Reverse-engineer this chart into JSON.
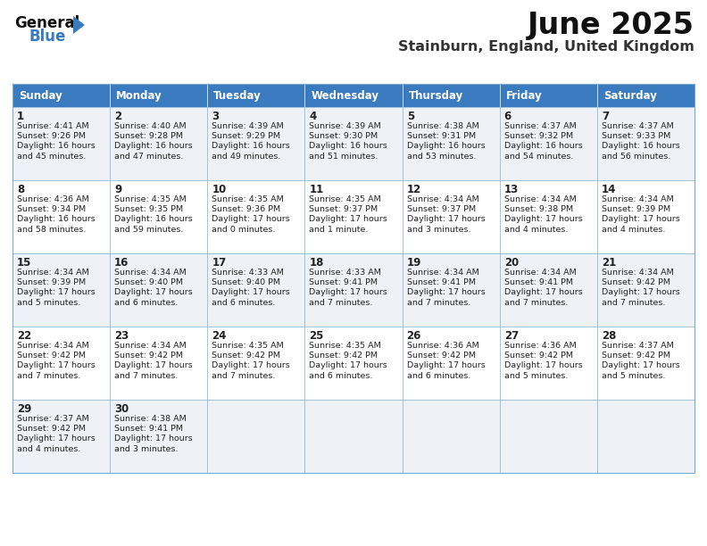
{
  "title": "June 2025",
  "subtitle": "Stainburn, England, United Kingdom",
  "header_color": "#3a7abf",
  "header_text_color": "#ffffff",
  "background_color": "#ffffff",
  "cell_bg_odd": "#eef2f7",
  "cell_bg_even": "#ffffff",
  "border_color": "#7aaacf",
  "text_color": "#222222",
  "days_of_week": [
    "Sunday",
    "Monday",
    "Tuesday",
    "Wednesday",
    "Thursday",
    "Friday",
    "Saturday"
  ],
  "calendar_data": [
    [
      {
        "day": "1",
        "sunrise": "4:41 AM",
        "sunset": "9:26 PM",
        "daylight": "16 hours\nand 45 minutes."
      },
      {
        "day": "2",
        "sunrise": "4:40 AM",
        "sunset": "9:28 PM",
        "daylight": "16 hours\nand 47 minutes."
      },
      {
        "day": "3",
        "sunrise": "4:39 AM",
        "sunset": "9:29 PM",
        "daylight": "16 hours\nand 49 minutes."
      },
      {
        "day": "4",
        "sunrise": "4:39 AM",
        "sunset": "9:30 PM",
        "daylight": "16 hours\nand 51 minutes."
      },
      {
        "day": "5",
        "sunrise": "4:38 AM",
        "sunset": "9:31 PM",
        "daylight": "16 hours\nand 53 minutes."
      },
      {
        "day": "6",
        "sunrise": "4:37 AM",
        "sunset": "9:32 PM",
        "daylight": "16 hours\nand 54 minutes."
      },
      {
        "day": "7",
        "sunrise": "4:37 AM",
        "sunset": "9:33 PM",
        "daylight": "16 hours\nand 56 minutes."
      }
    ],
    [
      {
        "day": "8",
        "sunrise": "4:36 AM",
        "sunset": "9:34 PM",
        "daylight": "16 hours\nand 58 minutes."
      },
      {
        "day": "9",
        "sunrise": "4:35 AM",
        "sunset": "9:35 PM",
        "daylight": "16 hours\nand 59 minutes."
      },
      {
        "day": "10",
        "sunrise": "4:35 AM",
        "sunset": "9:36 PM",
        "daylight": "17 hours\nand 0 minutes."
      },
      {
        "day": "11",
        "sunrise": "4:35 AM",
        "sunset": "9:37 PM",
        "daylight": "17 hours\nand 1 minute."
      },
      {
        "day": "12",
        "sunrise": "4:34 AM",
        "sunset": "9:37 PM",
        "daylight": "17 hours\nand 3 minutes."
      },
      {
        "day": "13",
        "sunrise": "4:34 AM",
        "sunset": "9:38 PM",
        "daylight": "17 hours\nand 4 minutes."
      },
      {
        "day": "14",
        "sunrise": "4:34 AM",
        "sunset": "9:39 PM",
        "daylight": "17 hours\nand 4 minutes."
      }
    ],
    [
      {
        "day": "15",
        "sunrise": "4:34 AM",
        "sunset": "9:39 PM",
        "daylight": "17 hours\nand 5 minutes."
      },
      {
        "day": "16",
        "sunrise": "4:34 AM",
        "sunset": "9:40 PM",
        "daylight": "17 hours\nand 6 minutes."
      },
      {
        "day": "17",
        "sunrise": "4:33 AM",
        "sunset": "9:40 PM",
        "daylight": "17 hours\nand 6 minutes."
      },
      {
        "day": "18",
        "sunrise": "4:33 AM",
        "sunset": "9:41 PM",
        "daylight": "17 hours\nand 7 minutes."
      },
      {
        "day": "19",
        "sunrise": "4:34 AM",
        "sunset": "9:41 PM",
        "daylight": "17 hours\nand 7 minutes."
      },
      {
        "day": "20",
        "sunrise": "4:34 AM",
        "sunset": "9:41 PM",
        "daylight": "17 hours\nand 7 minutes."
      },
      {
        "day": "21",
        "sunrise": "4:34 AM",
        "sunset": "9:42 PM",
        "daylight": "17 hours\nand 7 minutes."
      }
    ],
    [
      {
        "day": "22",
        "sunrise": "4:34 AM",
        "sunset": "9:42 PM",
        "daylight": "17 hours\nand 7 minutes."
      },
      {
        "day": "23",
        "sunrise": "4:34 AM",
        "sunset": "9:42 PM",
        "daylight": "17 hours\nand 7 minutes."
      },
      {
        "day": "24",
        "sunrise": "4:35 AM",
        "sunset": "9:42 PM",
        "daylight": "17 hours\nand 7 minutes."
      },
      {
        "day": "25",
        "sunrise": "4:35 AM",
        "sunset": "9:42 PM",
        "daylight": "17 hours\nand 6 minutes."
      },
      {
        "day": "26",
        "sunrise": "4:36 AM",
        "sunset": "9:42 PM",
        "daylight": "17 hours\nand 6 minutes."
      },
      {
        "day": "27",
        "sunrise": "4:36 AM",
        "sunset": "9:42 PM",
        "daylight": "17 hours\nand 5 minutes."
      },
      {
        "day": "28",
        "sunrise": "4:37 AM",
        "sunset": "9:42 PM",
        "daylight": "17 hours\nand 5 minutes."
      }
    ],
    [
      {
        "day": "29",
        "sunrise": "4:37 AM",
        "sunset": "9:42 PM",
        "daylight": "17 hours\nand 4 minutes."
      },
      {
        "day": "30",
        "sunrise": "4:38 AM",
        "sunset": "9:41 PM",
        "daylight": "17 hours\nand 3 minutes."
      },
      null,
      null,
      null,
      null,
      null
    ]
  ],
  "logo_general_color": "#111111",
  "logo_blue_color": "#3a7abf",
  "logo_triangle_color": "#3a7abf"
}
